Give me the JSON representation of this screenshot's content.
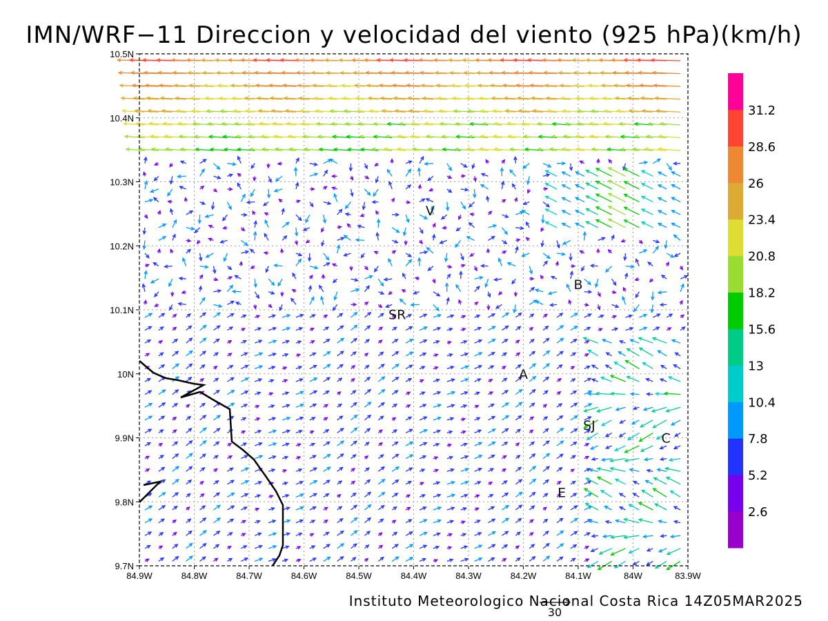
{
  "title": "IMN/WRF−11 Direccion y velocidad del viento (925 hPa)(km/h)",
  "footer": "Instituto Meteorologico Nacional Costa Rica 14Z05MAR2025",
  "reference_vector": {
    "label": "30",
    "value": 30
  },
  "x_ticks": [
    "84.9W",
    "84.8W",
    "84.7W",
    "84.6W",
    "84.5W",
    "84.4W",
    "84.3W",
    "84.2W",
    "84.1W",
    "84W",
    "83.9W"
  ],
  "y_ticks": [
    "10.5N",
    "10.4N",
    "10.3N",
    "10.2N",
    "10.1N",
    "10N",
    "9.9N",
    "9.8N",
    "9.7N"
  ],
  "colorbar": {
    "labels": [
      "2.6",
      "5.2",
      "7.8",
      "10.4",
      "13",
      "15.6",
      "18.2",
      "20.8",
      "23.4",
      "26",
      "28.6",
      "31.2"
    ],
    "colors": [
      "#9900cc",
      "#7700ee",
      "#2233ff",
      "#0099ff",
      "#00cccc",
      "#00cc88",
      "#00cc00",
      "#99dd33",
      "#dddd33",
      "#ddaa33",
      "#ee8833",
      "#ff4433",
      "#ff0099"
    ]
  },
  "cities": [
    {
      "name": "V",
      "lon": -84.37,
      "lat": 10.255
    },
    {
      "name": "B",
      "lon": -84.1,
      "lat": 10.14
    },
    {
      "name": "SR",
      "lon": -84.43,
      "lat": 10.093
    },
    {
      "name": "A",
      "lon": -84.2,
      "lat": 10.0
    },
    {
      "name": "SJ",
      "lon": -84.08,
      "lat": 9.92
    },
    {
      "name": "C",
      "lon": -83.94,
      "lat": 9.9
    },
    {
      "name": "E",
      "lon": -84.13,
      "lat": 9.815
    }
  ],
  "map": {
    "coastline_color": "#000000",
    "grid": "dotted",
    "lon_range": [
      -84.9,
      -83.9
    ],
    "lat_range": [
      9.7,
      10.5
    ]
  }
}
